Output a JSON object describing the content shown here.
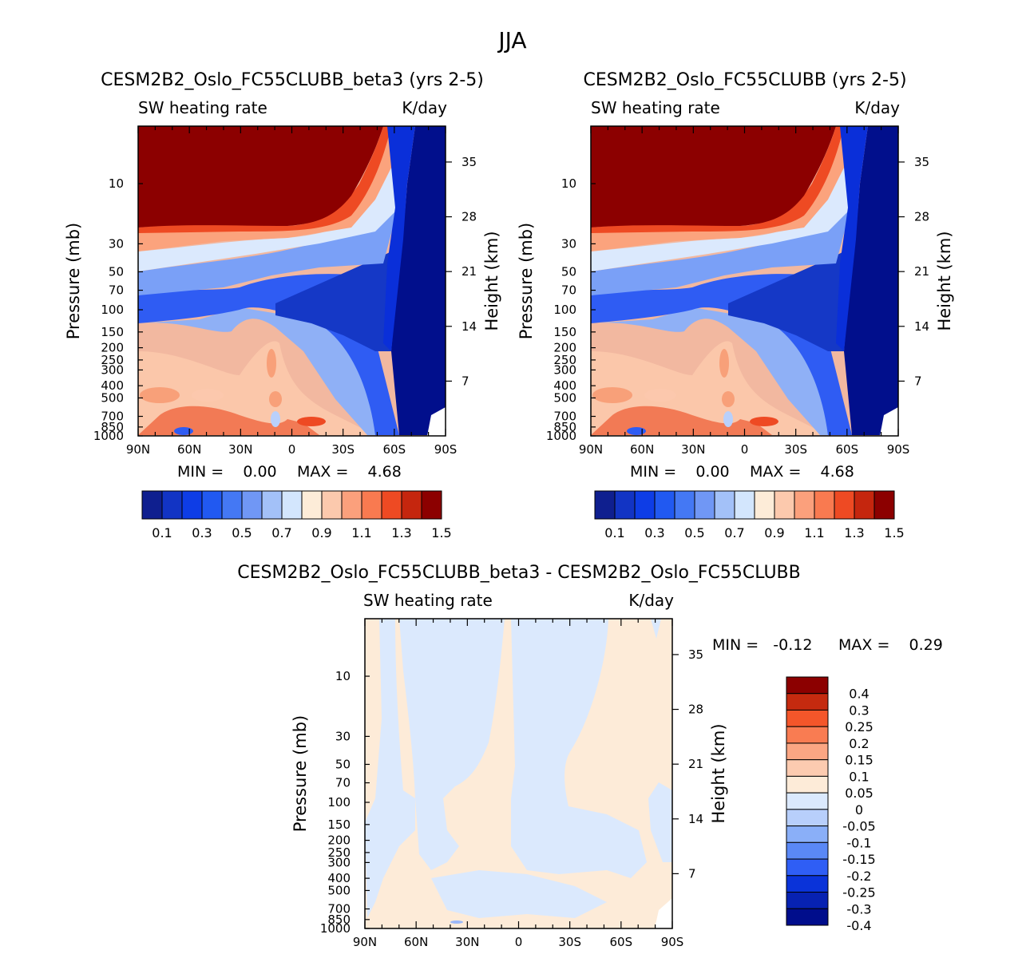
{
  "figure_title": "JJA",
  "colors": {
    "label_colors_15": [
      "#0f1f8f",
      "#1234c4",
      "#0e3de6",
      "#2159f1",
      "#4478f4",
      "#7097f5",
      "#a3c1f8",
      "#d3e6fd",
      "#fdecd8",
      "#fcc9ad",
      "#fba07c",
      "#f97a50",
      "#ee4a23",
      "#c5260e",
      "#8c0000"
    ],
    "diff_colors": [
      "#000d8c",
      "#0722b2",
      "#0a33d9",
      "#2f5ef5",
      "#5a88f6",
      "#8aaff8",
      "#b8cffb",
      "#dbe9fd",
      "#fdebd8",
      "#fccbb0",
      "#fba683",
      "#f97c52",
      "#f4562a",
      "#c52a0f",
      "#8c0000"
    ]
  },
  "chart_data": [
    {
      "type": "contour",
      "title": "CESM2B2_Oslo_FC55CLUBB_beta3 (yrs 2-5)",
      "subtitle_left": "SW heating rate",
      "subtitle_right": "K/day",
      "xlabel": "",
      "ylabel": "Pressure (mb)",
      "y2label": "Height (km)",
      "x_ticks": [
        "90N",
        "60N",
        "30N",
        "0",
        "30S",
        "60S",
        "90S"
      ],
      "y_ticks": [
        "10",
        "30",
        "50",
        "70",
        "100",
        "150",
        "200",
        "250",
        "300",
        "400",
        "500",
        "700",
        "850",
        "1000"
      ],
      "y_tick_values": [
        10,
        30,
        50,
        70,
        100,
        150,
        200,
        250,
        300,
        400,
        500,
        700,
        850,
        1000
      ],
      "y2_ticks": [
        "35",
        "28",
        "21",
        "14",
        "7"
      ],
      "y2_tick_values": [
        35,
        28,
        21,
        14,
        7
      ],
      "ylim": [
        1000,
        3.5
      ],
      "min_label": "MIN =    0.00",
      "max_label": "MAX =    4.68",
      "min": 0.0,
      "max": 4.68,
      "colorbar_labels": [
        "0.1",
        "0.3",
        "0.5",
        "0.7",
        "0.9",
        "1.1",
        "1.3",
        "1.5"
      ],
      "levels": [
        0.1,
        0.2,
        0.3,
        0.4,
        0.5,
        0.6,
        0.7,
        0.8,
        0.9,
        1.0,
        1.1,
        1.2,
        1.3,
        1.4
      ]
    },
    {
      "type": "contour",
      "title": "CESM2B2_Oslo_FC55CLUBB (yrs 2-5)",
      "subtitle_left": "SW heating rate",
      "subtitle_right": "K/day",
      "xlabel": "",
      "ylabel": "Pressure (mb)",
      "y2label": "Height (km)",
      "x_ticks": [
        "90N",
        "60N",
        "30N",
        "0",
        "30S",
        "60S",
        "90S"
      ],
      "y_ticks": [
        "10",
        "30",
        "50",
        "70",
        "100",
        "150",
        "200",
        "250",
        "300",
        "400",
        "500",
        "700",
        "850",
        "1000"
      ],
      "y_tick_values": [
        10,
        30,
        50,
        70,
        100,
        150,
        200,
        250,
        300,
        400,
        500,
        700,
        850,
        1000
      ],
      "y2_ticks": [
        "35",
        "28",
        "21",
        "14",
        "7"
      ],
      "y2_tick_values": [
        35,
        28,
        21,
        14,
        7
      ],
      "ylim": [
        1000,
        3.5
      ],
      "min_label": "MIN =    0.00",
      "max_label": "MAX =    4.68",
      "min": 0.0,
      "max": 4.68,
      "colorbar_labels": [
        "0.1",
        "0.3",
        "0.5",
        "0.7",
        "0.9",
        "1.1",
        "1.3",
        "1.5"
      ],
      "levels": [
        0.1,
        0.2,
        0.3,
        0.4,
        0.5,
        0.6,
        0.7,
        0.8,
        0.9,
        1.0,
        1.1,
        1.2,
        1.3,
        1.4
      ]
    },
    {
      "type": "contour",
      "title": "CESM2B2_Oslo_FC55CLUBB_beta3 - CESM2B2_Oslo_FC55CLUBB",
      "subtitle_left": "SW heating rate",
      "subtitle_right": "K/day",
      "xlabel": "",
      "ylabel": "Pressure (mb)",
      "y2label": "Height (km)",
      "x_ticks": [
        "90N",
        "60N",
        "30N",
        "0",
        "30S",
        "60S",
        "90S"
      ],
      "y_ticks": [
        "10",
        "30",
        "50",
        "70",
        "100",
        "150",
        "200",
        "250",
        "300",
        "400",
        "500",
        "700",
        "850",
        "1000"
      ],
      "y_tick_values": [
        10,
        30,
        50,
        70,
        100,
        150,
        200,
        250,
        300,
        400,
        500,
        700,
        850,
        1000
      ],
      "y2_ticks": [
        "35",
        "28",
        "21",
        "14",
        "7"
      ],
      "y2_tick_values": [
        35,
        28,
        21,
        14,
        7
      ],
      "ylim": [
        1000,
        3.5
      ],
      "min_label": "MIN =   -0.12",
      "max_label": "MAX =    0.29",
      "min": -0.12,
      "max": 0.29,
      "colorbar_labels": [
        "0.4",
        "0.3",
        "0.25",
        "0.2",
        "0.15",
        "0.1",
        "0.05",
        "0",
        "-0.05",
        "-0.1",
        "-0.15",
        "-0.2",
        "-0.25",
        "-0.3",
        "-0.4"
      ],
      "levels": [
        -0.4,
        -0.3,
        -0.25,
        -0.2,
        -0.15,
        -0.1,
        -0.05,
        0,
        0.05,
        0.1,
        0.15,
        0.2,
        0.25,
        0.3,
        0.4
      ]
    }
  ]
}
